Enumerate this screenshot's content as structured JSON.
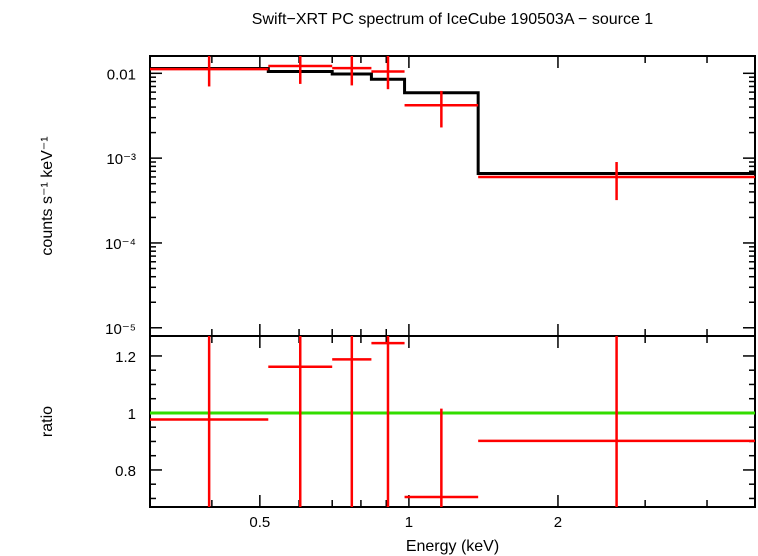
{
  "chart_data": [
    {
      "type": "scatter",
      "title": "Swift−XRT PC spectrum of IceCube 190503A − source 1",
      "ylabel": "counts s⁻¹ keV⁻¹",
      "yscale": "log",
      "xscale": "log",
      "xlim": [
        0.3,
        5.0
      ],
      "ylim": [
        8e-06,
        0.016
      ],
      "yticks": [
        {
          "value": 0.01,
          "label": "0.01"
        },
        {
          "value": 0.001,
          "label": "10⁻³"
        },
        {
          "value": 0.0001,
          "label": "10⁻⁴"
        },
        {
          "value": 1e-05,
          "label": "10⁻⁵"
        }
      ],
      "data": {
        "name": "data",
        "color": "#ff0000",
        "points": [
          {
            "xlo": 0.3,
            "xhi": 0.52,
            "y": 0.0112,
            "ylo": 0.007,
            "yhi": 0.0162
          },
          {
            "xlo": 0.52,
            "xhi": 0.7,
            "y": 0.0122,
            "ylo": 0.0075,
            "yhi": 0.017
          },
          {
            "xlo": 0.7,
            "xhi": 0.84,
            "y": 0.0115,
            "ylo": 0.0072,
            "yhi": 0.0165
          },
          {
            "xlo": 0.84,
            "xhi": 0.98,
            "y": 0.0105,
            "ylo": 0.0065,
            "yhi": 0.016
          },
          {
            "xlo": 0.98,
            "xhi": 1.38,
            "y": 0.0042,
            "ylo": 0.0023,
            "yhi": 0.0062
          },
          {
            "xlo": 1.38,
            "xhi": 5.0,
            "y": 0.0006,
            "ylo": 0.00032,
            "yhi": 0.0009
          }
        ]
      },
      "model": {
        "name": "model",
        "color": "#000000",
        "steps": [
          {
            "xlo": 0.3,
            "xhi": 0.52,
            "y": 0.0114
          },
          {
            "xlo": 0.52,
            "xhi": 0.7,
            "y": 0.0105
          },
          {
            "xlo": 0.7,
            "xhi": 0.84,
            "y": 0.0098
          },
          {
            "xlo": 0.84,
            "xhi": 0.98,
            "y": 0.0085
          },
          {
            "xlo": 0.98,
            "xhi": 1.38,
            "y": 0.0059
          },
          {
            "xlo": 1.38,
            "xhi": 5.0,
            "y": 0.00066
          }
        ]
      }
    },
    {
      "type": "scatter",
      "ylabel": "ratio",
      "xlabel": "Energy (keV)",
      "xscale": "log",
      "xlim": [
        0.3,
        5.0
      ],
      "ylim": [
        0.67,
        1.27
      ],
      "yticks": [
        {
          "value": 0.8,
          "label": "0.8"
        },
        {
          "value": 1.0,
          "label": "1"
        },
        {
          "value": 1.2,
          "label": "1.2"
        }
      ],
      "xticks": [
        {
          "value": 0.5,
          "label": "0.5"
        },
        {
          "value": 1.0,
          "label": "1"
        },
        {
          "value": 2.0,
          "label": "2"
        }
      ],
      "reference": {
        "y": 1.0,
        "color": "#33dd00"
      },
      "data": {
        "name": "ratio",
        "color": "#ff0000",
        "points": [
          {
            "xlo": 0.3,
            "xhi": 0.52,
            "y": 0.977,
            "ylo": 0.6,
            "yhi": 1.4
          },
          {
            "xlo": 0.52,
            "xhi": 0.7,
            "y": 1.162,
            "ylo": 0.6,
            "yhi": 1.4
          },
          {
            "xlo": 0.7,
            "xhi": 0.84,
            "y": 1.188,
            "ylo": 0.6,
            "yhi": 1.4
          },
          {
            "xlo": 0.84,
            "xhi": 0.98,
            "y": 1.245,
            "ylo": 0.6,
            "yhi": 1.4
          },
          {
            "xlo": 0.98,
            "xhi": 1.38,
            "y": 0.705,
            "ylo": 0.6,
            "yhi": 1.015
          },
          {
            "xlo": 1.38,
            "xhi": 5.0,
            "y": 0.902,
            "ylo": 0.6,
            "yhi": 1.4
          }
        ]
      }
    }
  ]
}
